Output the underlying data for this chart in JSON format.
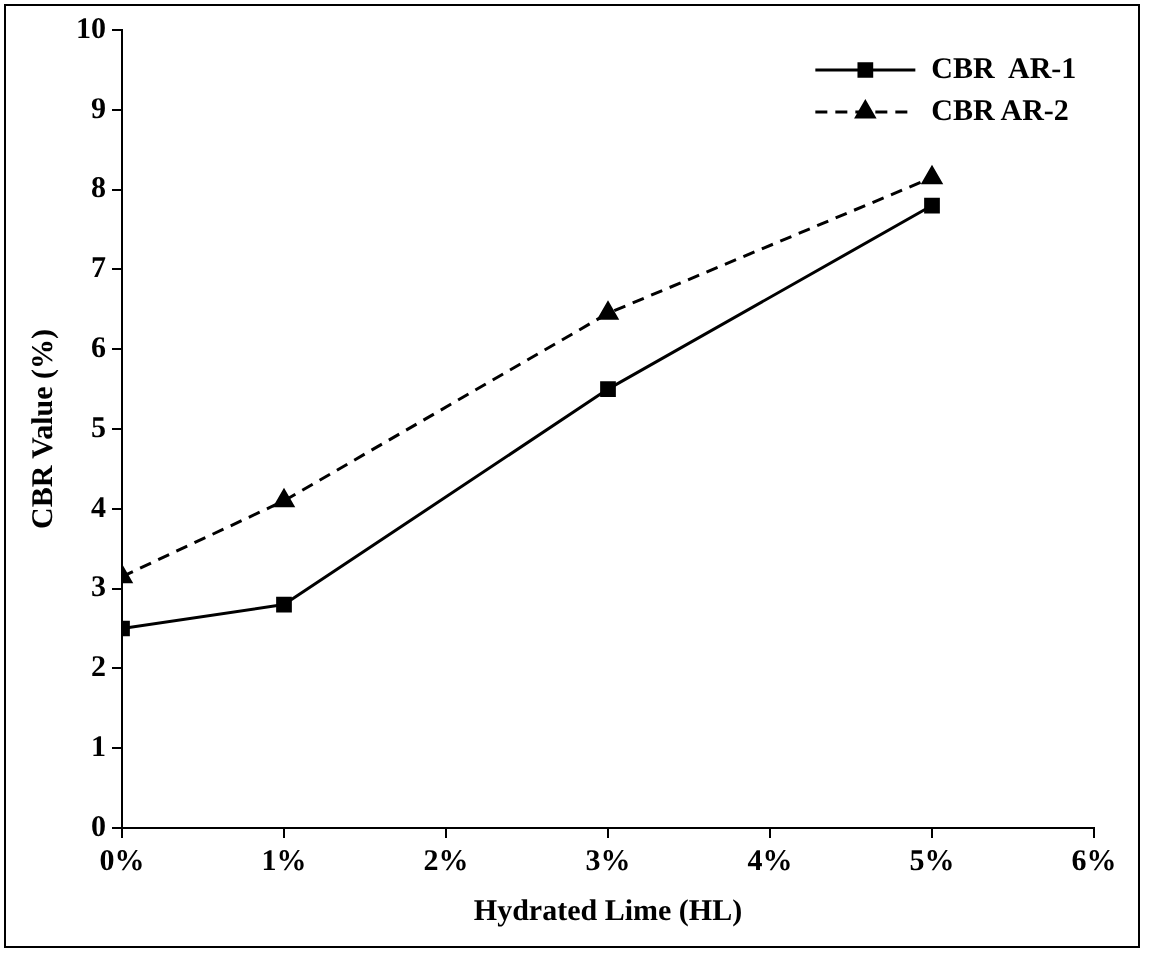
{
  "chart_data": {
    "type": "line",
    "xlabel": "Hydrated Lime (HL)",
    "ylabel": "CBR Value (%)",
    "xlim": [
      0,
      6
    ],
    "xticks": [
      {
        "value": 0,
        "label": "0%"
      },
      {
        "value": 1,
        "label": "1%"
      },
      {
        "value": 2,
        "label": "2%"
      },
      {
        "value": 3,
        "label": "3%"
      },
      {
        "value": 4,
        "label": "4%"
      },
      {
        "value": 5,
        "label": "5%"
      },
      {
        "value": 6,
        "label": "6%"
      }
    ],
    "ylim": [
      0,
      10
    ],
    "yticks": [
      0,
      1,
      2,
      3,
      4,
      5,
      6,
      7,
      8,
      9,
      10
    ],
    "grid": false,
    "legend": "top right",
    "x": [
      0,
      1,
      3,
      5
    ],
    "series": [
      {
        "name": "CBR  AR-1",
        "color": "#000000",
        "values": [
          2.5,
          2.8,
          5.5,
          7.8
        ],
        "marker": "square",
        "line_style": "solid"
      },
      {
        "name": "CBR AR-2",
        "color": "#000000",
        "values": [
          3.15,
          4.1,
          6.45,
          8.15
        ],
        "marker": "triangle",
        "line_style": "dashed"
      }
    ]
  }
}
